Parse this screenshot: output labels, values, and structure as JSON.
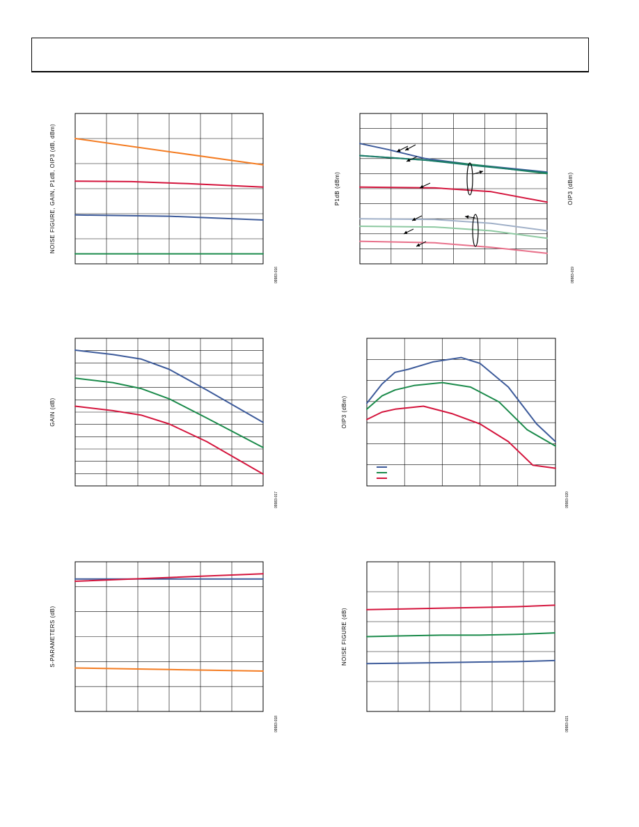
{
  "charts": [
    {
      "id": "c1",
      "ylabel": "NOISE FIGURE, GAIN, P1dB, OIP3 (dB, dBm)",
      "ylabel2": "",
      "fig_id": "09983-016",
      "lines": [
        {
          "color": "#f47b20",
          "points": [
            [
              0,
              50
            ],
            [
              1,
              39.5
            ]
          ]
        },
        {
          "color": "#d4143c",
          "points": [
            [
              0,
              33
            ],
            [
              0.3,
              32.8
            ],
            [
              0.6,
              32
            ],
            [
              1,
              30.6
            ]
          ]
        },
        {
          "color": "#3c5a9a",
          "points": [
            [
              0,
              19.5
            ],
            [
              0.5,
              19
            ],
            [
              1,
              17.5
            ]
          ]
        },
        {
          "color": "#1a8a4a",
          "points": [
            [
              0,
              4
            ],
            [
              1,
              4
            ]
          ]
        }
      ],
      "ylim": [
        0,
        60
      ]
    },
    {
      "id": "c2",
      "ylabel": "P1dB (dBm)",
      "ylabel2": "OIP3 (dBm)",
      "fig_id": "09983-019",
      "lines": [
        {
          "color": "#3c5a9a",
          "points": [
            [
              0,
              80
            ],
            [
              0.15,
              76
            ],
            [
              0.35,
              70
            ],
            [
              0.6,
              66
            ],
            [
              1,
              61
            ]
          ]
        },
        {
          "color": "#1a8a4a",
          "points": [
            [
              0,
              72
            ],
            [
              0.35,
              69
            ],
            [
              0.6,
              66
            ],
            [
              1,
              60
            ]
          ]
        },
        {
          "color": "#1a7a6a",
          "points": [
            [
              0,
              72
            ],
            [
              0.35,
              69
            ],
            [
              0.6,
              65.5
            ],
            [
              1,
              60.5
            ]
          ]
        },
        {
          "color": "#d4143c",
          "points": [
            [
              0,
              51
            ],
            [
              0.4,
              50.5
            ],
            [
              0.7,
              48
            ],
            [
              1,
              41
            ]
          ]
        },
        {
          "color": "#a0b0c8",
          "points": [
            [
              0,
              30
            ],
            [
              0.4,
              29.5
            ],
            [
              0.7,
              27
            ],
            [
              1,
              22
            ]
          ]
        },
        {
          "color": "#8cc8a0",
          "points": [
            [
              0,
              25
            ],
            [
              0.4,
              24.5
            ],
            [
              0.7,
              22
            ],
            [
              1,
              17
            ]
          ]
        },
        {
          "color": "#e8708a",
          "points": [
            [
              0,
              15
            ],
            [
              0.4,
              14
            ],
            [
              0.7,
              11
            ],
            [
              1,
              7
            ]
          ]
        }
      ],
      "ylim": [
        0,
        100
      ]
    },
    {
      "id": "c3",
      "ylabel": "GAIN (dB)",
      "ylabel2": "",
      "fig_id": "09983-017",
      "lines": [
        {
          "color": "#3c5a9a",
          "points": [
            [
              0,
              92
            ],
            [
              0.2,
              89
            ],
            [
              0.35,
              86
            ],
            [
              0.5,
              79
            ],
            [
              0.7,
              65
            ],
            [
              1,
              43
            ]
          ]
        },
        {
          "color": "#1a8a4a",
          "points": [
            [
              0,
              73
            ],
            [
              0.2,
              70
            ],
            [
              0.35,
              66
            ],
            [
              0.5,
              59
            ],
            [
              0.7,
              46
            ],
            [
              1,
              26
            ]
          ]
        },
        {
          "color": "#d4143c",
          "points": [
            [
              0,
              54
            ],
            [
              0.2,
              51
            ],
            [
              0.35,
              48
            ],
            [
              0.5,
              42
            ],
            [
              0.7,
              30
            ],
            [
              1,
              8
            ]
          ]
        }
      ],
      "ylim": [
        0,
        100
      ]
    },
    {
      "id": "c4",
      "ylabel": "OIP3 (dBm)",
      "ylabel2": "",
      "fig_id": "09983-020",
      "lines": [
        {
          "color": "#3c5a9a",
          "points": [
            [
              0,
              56
            ],
            [
              0.08,
              69
            ],
            [
              0.15,
              77
            ],
            [
              0.22,
              79
            ],
            [
              0.35,
              84
            ],
            [
              0.5,
              87
            ],
            [
              0.6,
              83
            ],
            [
              0.75,
              67
            ],
            [
              0.9,
              42
            ],
            [
              1,
              30
            ]
          ]
        },
        {
          "color": "#1a8a4a",
          "points": [
            [
              0,
              52
            ],
            [
              0.08,
              61
            ],
            [
              0.15,
              65
            ],
            [
              0.25,
              68
            ],
            [
              0.4,
              70
            ],
            [
              0.55,
              67
            ],
            [
              0.7,
              57
            ],
            [
              0.85,
              38
            ],
            [
              1,
              27
            ]
          ]
        },
        {
          "color": "#d4143c",
          "points": [
            [
              0,
              45
            ],
            [
              0.08,
              50
            ],
            [
              0.15,
              52
            ],
            [
              0.3,
              54
            ],
            [
              0.45,
              49
            ],
            [
              0.6,
              42
            ],
            [
              0.75,
              30
            ],
            [
              0.88,
              14
            ],
            [
              1,
              12
            ]
          ]
        }
      ],
      "ylim": [
        0,
        100
      ]
    },
    {
      "id": "c5",
      "ylabel": "S-PARAMETERS (dB)",
      "ylabel2": "",
      "fig_id": "09983-018",
      "lines": [
        {
          "color": "#3c5a9a",
          "points": [
            [
              0,
              88.5
            ],
            [
              1,
              88.5
            ]
          ]
        },
        {
          "color": "#d4143c",
          "points": [
            [
              0,
              87
            ],
            [
              0.5,
              89.5
            ],
            [
              1,
              92
            ]
          ]
        },
        {
          "color": "#f47b20",
          "points": [
            [
              0,
              29
            ],
            [
              0.5,
              28
            ],
            [
              1,
              27
            ]
          ]
        }
      ],
      "ylim": [
        0,
        100
      ]
    },
    {
      "id": "c6",
      "ylabel": "NOISE FIGURE (dB)",
      "ylabel2": "",
      "fig_id": "09983-021",
      "lines": [
        {
          "color": "#d4143c",
          "points": [
            [
              0,
              68
            ],
            [
              0.2,
              68.5
            ],
            [
              0.4,
              69
            ],
            [
              0.6,
              69.5
            ],
            [
              0.8,
              70
            ],
            [
              1,
              71
            ]
          ]
        },
        {
          "color": "#1a8a4a",
          "points": [
            [
              0,
              50
            ],
            [
              0.2,
              50.5
            ],
            [
              0.4,
              51
            ],
            [
              0.6,
              51
            ],
            [
              0.8,
              51.5
            ],
            [
              1,
              52.5
            ]
          ]
        },
        {
          "color": "#3c5a9a",
          "points": [
            [
              0,
              32
            ],
            [
              0.2,
              32.3
            ],
            [
              0.4,
              32.6
            ],
            [
              0.6,
              33
            ],
            [
              0.8,
              33.3
            ],
            [
              1,
              34
            ]
          ]
        }
      ],
      "ylim": [
        0,
        100
      ]
    }
  ]
}
